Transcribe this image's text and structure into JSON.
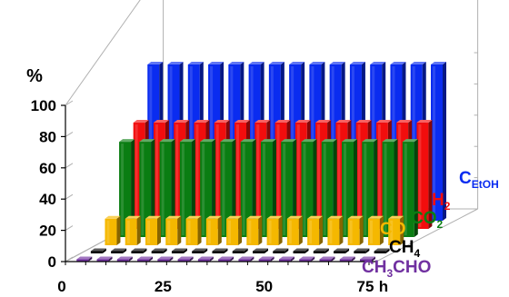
{
  "chart_data": {
    "type": "bar",
    "subtype": "3d-grouped-bar",
    "ylabel": "%",
    "xlabel": "h",
    "y_ticks": [
      "0",
      "20",
      "40",
      "60",
      "80",
      "100"
    ],
    "x_ticks": [
      "0",
      "25",
      "50",
      "75"
    ],
    "ylim": [
      0,
      100
    ],
    "xlim": [
      0,
      75
    ],
    "x": [
      5,
      10,
      15,
      20,
      25,
      30,
      35,
      40,
      45,
      50,
      55,
      60,
      65,
      70,
      75
    ],
    "grid": false,
    "legend_placement": "right",
    "series": [
      {
        "name_base": "C",
        "name_sub": "EtOH",
        "color": "#0a2cf0",
        "values": [
          100,
          100,
          100,
          100,
          100,
          100,
          100,
          100,
          100,
          100,
          100,
          100,
          100,
          100,
          100
        ]
      },
      {
        "name_base": "H",
        "name_sub": "2",
        "color": "#f20d0d",
        "values": [
          68,
          68,
          68,
          68,
          68,
          68,
          68,
          68,
          68,
          68,
          68,
          68,
          68,
          68,
          68
        ]
      },
      {
        "name_base": "CO",
        "name_sub": "2",
        "color": "#0a7d12",
        "values": [
          61,
          61,
          61,
          61,
          61,
          61,
          61,
          61,
          61,
          61,
          61,
          61,
          61,
          61,
          61
        ]
      },
      {
        "name_base": "CO",
        "name_sub": "",
        "color": "#f5b800",
        "values": [
          17,
          17,
          17,
          17,
          17,
          17,
          17,
          17,
          17,
          17,
          17,
          17,
          17,
          17,
          17
        ]
      },
      {
        "name_base": "CH",
        "name_sub": "4",
        "color": "#000000",
        "values": [
          1,
          1,
          1,
          1,
          1,
          1,
          1,
          1,
          1,
          1,
          1,
          1,
          1,
          1,
          1
        ]
      },
      {
        "name_base": "CH",
        "name_sub": "3",
        "name_tail": "CHO",
        "color": "#7030a0",
        "values": [
          1,
          1,
          1,
          1,
          1,
          1,
          1,
          1,
          1,
          1,
          1,
          1,
          1,
          1,
          1
        ]
      }
    ]
  }
}
